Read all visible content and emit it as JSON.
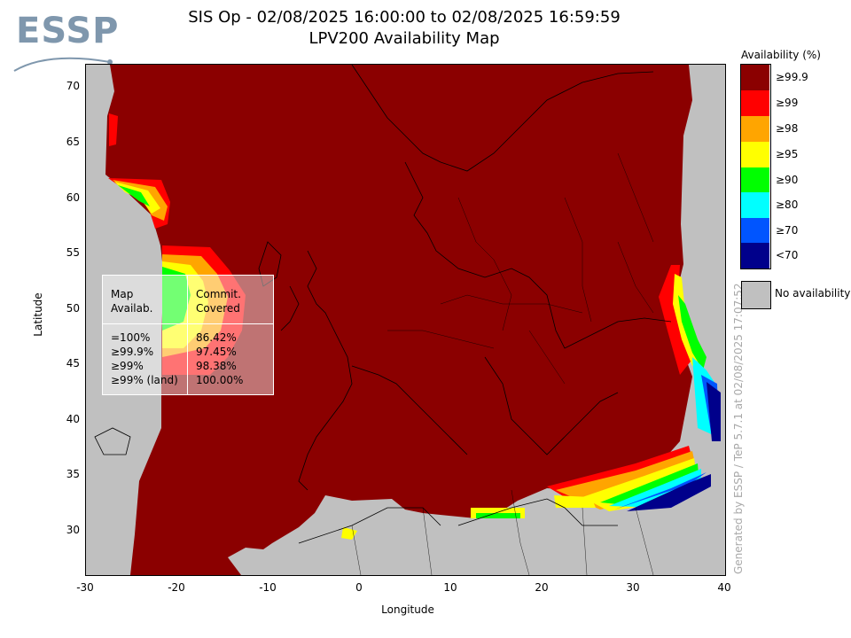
{
  "header": {
    "logo_text": "ESSP",
    "title_line1": "SIS Op - 02/08/2025 16:00:00 to 02/08/2025 16:59:59",
    "title_line2": "LPV200 Availability Map"
  },
  "axes": {
    "xlabel": "Longitude",
    "ylabel": "Latitude",
    "x_ticks": [
      "-30",
      "-20",
      "-10",
      "0",
      "10",
      "20",
      "30",
      "40"
    ],
    "y_ticks": [
      "70",
      "65",
      "60",
      "55",
      "50",
      "45",
      "40",
      "35",
      "30"
    ],
    "x_range": [
      -30,
      40
    ],
    "y_range": [
      26,
      72
    ]
  },
  "legend": {
    "title": "Availability (%)",
    "items": [
      {
        "label": "≥99.9",
        "color": "#8b0000"
      },
      {
        "label": "≥99",
        "color": "#ff0000"
      },
      {
        "label": "≥98",
        "color": "#ffa500"
      },
      {
        "label": "≥95",
        "color": "#ffff00"
      },
      {
        "label": "≥90",
        "color": "#00ff00"
      },
      {
        "label": "≥80",
        "color": "#00ffff"
      },
      {
        "label": "≥70",
        "color": "#0055ff"
      },
      {
        "label": "<70",
        "color": "#00008b"
      }
    ],
    "no_availability_label": "No availability",
    "no_availability_color": "#c0c0c0"
  },
  "stats": {
    "header_col1": "Map\nAvailab.",
    "header_col2": "Commit.\nCovered",
    "rows": [
      {
        "label": "=100%",
        "value": "86.42%"
      },
      {
        "label": "≥99.9%",
        "value": "97.45%"
      },
      {
        "label": "≥99%",
        "value": "98.38%"
      },
      {
        "label": "≥99% (land)",
        "value": "100.00%"
      }
    ]
  },
  "credit": "Generated by ESSP / TeP 5.7.1 at 02/08/2025 17:07:52",
  "colors": {
    "availability_max": "#8b0000",
    "no_coverage": "#c0c0c0"
  }
}
